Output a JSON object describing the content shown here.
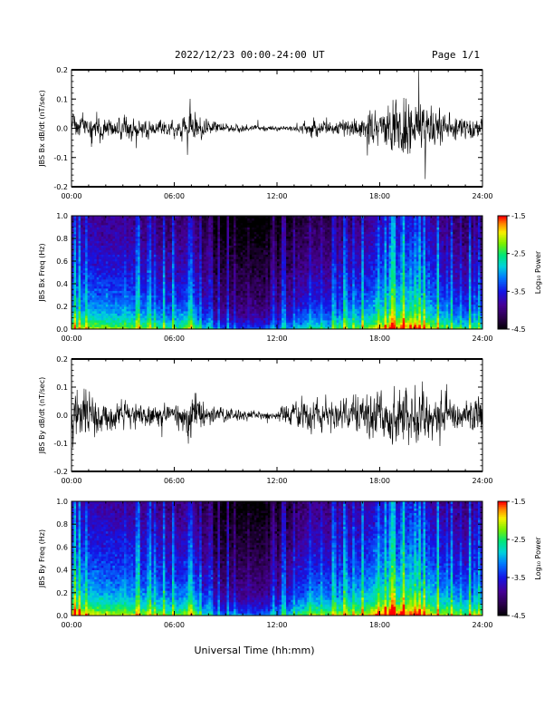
{
  "header": {
    "title": "2022/12/23  00:00-24:00 UT",
    "page": "Page 1/1"
  },
  "xlabel": "Universal Time (hh:mm)",
  "chart_data": [
    {
      "type": "line",
      "ylabel": "JBS Bx dB/dt (nT/sec)",
      "ylim": [
        -0.2,
        0.2
      ],
      "yticks": [
        "-0.2",
        "-0.1",
        "0.0",
        "0.1",
        "0.2"
      ],
      "xlim": [
        "00:00",
        "24:00"
      ],
      "xticks": [
        "00:00",
        "06:00",
        "12:00",
        "18:00",
        "24:00"
      ],
      "envelope": {
        "hours": [
          0,
          1,
          2,
          3,
          4,
          5,
          6,
          7,
          8,
          9,
          10,
          11,
          12,
          13,
          14,
          15,
          16,
          17,
          18,
          19,
          20,
          21,
          22,
          23,
          24
        ],
        "amplitude": [
          0.04,
          0.05,
          0.04,
          0.04,
          0.035,
          0.03,
          0.025,
          0.07,
          0.025,
          0.015,
          0.012,
          0.01,
          0.008,
          0.012,
          0.03,
          0.03,
          0.035,
          0.04,
          0.08,
          0.09,
          0.11,
          0.07,
          0.05,
          0.045,
          0.04
        ]
      }
    },
    {
      "type": "heatmap",
      "ylabel": "JBS Bx Freq (Hz)",
      "ylim": [
        0,
        1.0
      ],
      "yticks": [
        "0.0",
        "0.2",
        "0.4",
        "0.6",
        "0.8",
        "1.0"
      ],
      "xticks": [
        "00:00",
        "06:00",
        "12:00",
        "18:00",
        "24:00"
      ],
      "colorbar": {
        "label": "Log₁₀ Power",
        "range": [
          -4.5,
          -1.5
        ],
        "ticks": [
          "-1.5",
          "-2.5",
          "-3.5",
          "-4.5"
        ]
      },
      "activity": {
        "hours": [
          0,
          1,
          2,
          3,
          4,
          5,
          6,
          7,
          8,
          9,
          10,
          11,
          12,
          13,
          14,
          15,
          16,
          17,
          18,
          19,
          20,
          21,
          22,
          23,
          24
        ],
        "level": [
          0.6,
          0.65,
          0.6,
          0.6,
          0.55,
          0.5,
          0.45,
          0.6,
          0.2,
          0.15,
          0.15,
          0.15,
          0.15,
          0.3,
          0.45,
          0.4,
          0.5,
          0.55,
          0.7,
          0.75,
          0.8,
          0.65,
          0.5,
          0.45,
          0.45
        ]
      }
    },
    {
      "type": "line",
      "ylabel": "JBS By dB/dt (nT/sec)",
      "ylim": [
        -0.2,
        0.2
      ],
      "yticks": [
        "-0.2",
        "-0.1",
        "0.0",
        "0.1",
        "0.2"
      ],
      "xlim": [
        "00:00",
        "24:00"
      ],
      "xticks": [
        "00:00",
        "06:00",
        "12:00",
        "18:00",
        "24:00"
      ],
      "envelope": {
        "hours": [
          0,
          1,
          2,
          3,
          4,
          5,
          6,
          7,
          8,
          9,
          10,
          11,
          12,
          13,
          14,
          15,
          16,
          17,
          18,
          19,
          20,
          21,
          22,
          23,
          24
        ],
        "amplitude": [
          0.09,
          0.08,
          0.06,
          0.055,
          0.045,
          0.04,
          0.035,
          0.1,
          0.03,
          0.025,
          0.02,
          0.015,
          0.015,
          0.05,
          0.06,
          0.055,
          0.06,
          0.07,
          0.1,
          0.1,
          0.11,
          0.08,
          0.06,
          0.05,
          0.07
        ]
      }
    },
    {
      "type": "heatmap",
      "ylabel": "JBS By Freq (Hz)",
      "ylim": [
        0,
        1.0
      ],
      "yticks": [
        "0.0",
        "0.2",
        "0.4",
        "0.6",
        "0.8",
        "1.0"
      ],
      "xticks": [
        "00:00",
        "06:00",
        "12:00",
        "18:00",
        "24:00"
      ],
      "colorbar": {
        "label": "Log₁₀ Power",
        "range": [
          -4.5,
          -1.5
        ],
        "ticks": [
          "-1.5",
          "-2.5",
          "-3.5",
          "-4.5"
        ]
      },
      "activity": {
        "hours": [
          0,
          1,
          2,
          3,
          4,
          5,
          6,
          7,
          8,
          9,
          10,
          11,
          12,
          13,
          14,
          15,
          16,
          17,
          18,
          19,
          20,
          21,
          22,
          23,
          24
        ],
        "level": [
          0.75,
          0.7,
          0.65,
          0.65,
          0.6,
          0.6,
          0.5,
          0.65,
          0.25,
          0.2,
          0.2,
          0.2,
          0.2,
          0.4,
          0.6,
          0.55,
          0.6,
          0.65,
          0.8,
          0.8,
          0.85,
          0.7,
          0.6,
          0.55,
          0.55
        ]
      }
    }
  ]
}
